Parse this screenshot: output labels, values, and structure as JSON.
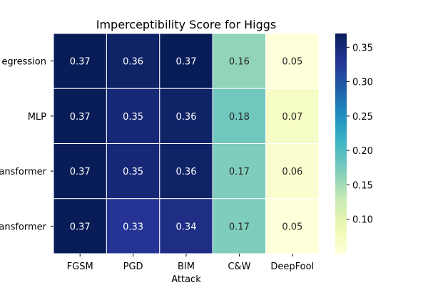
{
  "chart_data": {
    "type": "heatmap",
    "title": "Imperceptibility Score for Higgs",
    "xlabel": "Attack",
    "ylabel": "",
    "columns": [
      "FGSM",
      "PGD",
      "BIM",
      "C&W",
      "DeepFool"
    ],
    "rows": [
      "egression",
      "MLP",
      "ansformer",
      "ansformer"
    ],
    "values": [
      [
        0.37,
        0.36,
        0.37,
        0.16,
        0.05
      ],
      [
        0.37,
        0.35,
        0.36,
        0.18,
        0.07
      ],
      [
        0.37,
        0.35,
        0.36,
        0.17,
        0.06
      ],
      [
        0.37,
        0.33,
        0.34,
        0.17,
        0.05
      ]
    ],
    "value_labels": [
      [
        "0.37",
        "0.36",
        "0.37",
        "0.16",
        "0.05"
      ],
      [
        "0.37",
        "0.35",
        "0.36",
        "0.18",
        "0.07"
      ],
      [
        "0.37",
        "0.35",
        "0.36",
        "0.17",
        "0.06"
      ],
      [
        "0.37",
        "0.33",
        "0.34",
        "0.17",
        "0.05"
      ]
    ],
    "colorbar": {
      "vmin": 0.05,
      "vmax": 0.37,
      "ticks": [
        0.1,
        0.15,
        0.2,
        0.25,
        0.3,
        0.35
      ],
      "tick_labels": [
        "0.10",
        "0.15",
        "0.20",
        "0.25",
        "0.30",
        "0.35"
      ],
      "colormap": "YlGnBu"
    }
  }
}
